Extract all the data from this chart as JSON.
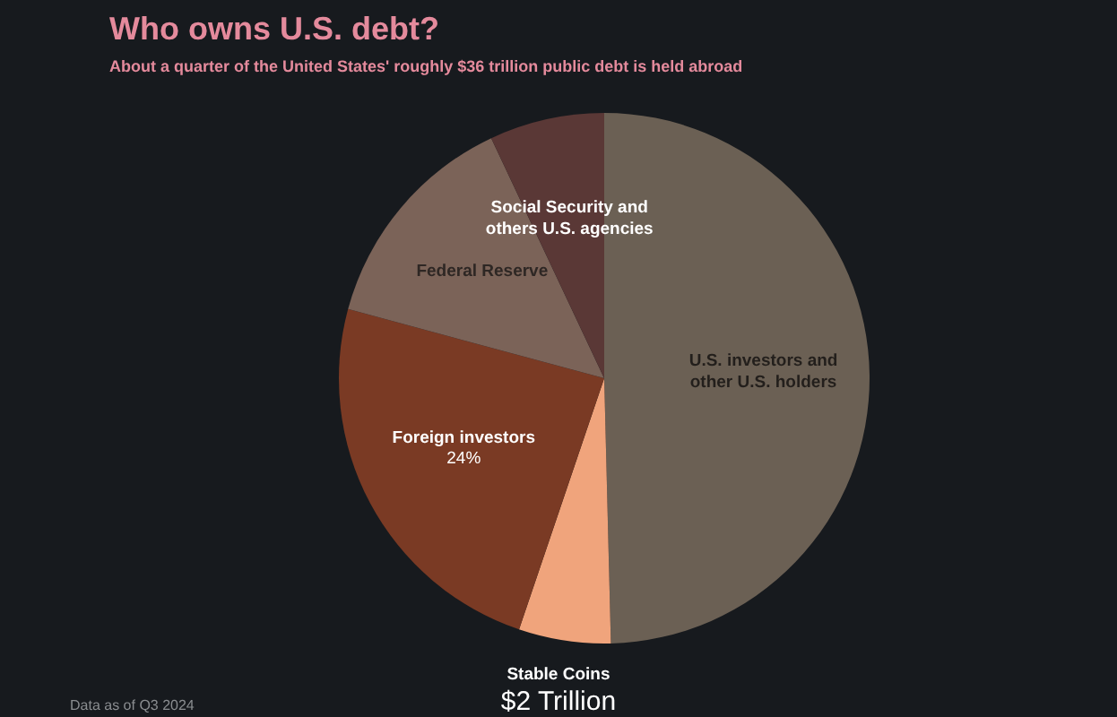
{
  "chart_data": {
    "type": "pie",
    "title": "Who owns U.S. debt?",
    "subtitle": "About a quarter of the United States' roughly $36 trillion public debt is held abroad",
    "categories": [
      "U.S. investors and other U.S. holders",
      "Stable Coins",
      "Foreign investors",
      "Federal Reserve",
      "Social Security and others U.S. agencies"
    ],
    "values": [
      49.6,
      5.6,
      24,
      13.8,
      7
    ],
    "value_labels": [
      null,
      null,
      "24%",
      null,
      null
    ],
    "colors": [
      "#6b6054",
      "#f0a47c",
      "#7a3a24",
      "#7b6358",
      "#5a3836"
    ],
    "annotations": [
      "Data as of Q3 2024",
      {
        "text": "$2 Trillion",
        "x": "Stable Coins"
      }
    ],
    "legend": false
  }
}
